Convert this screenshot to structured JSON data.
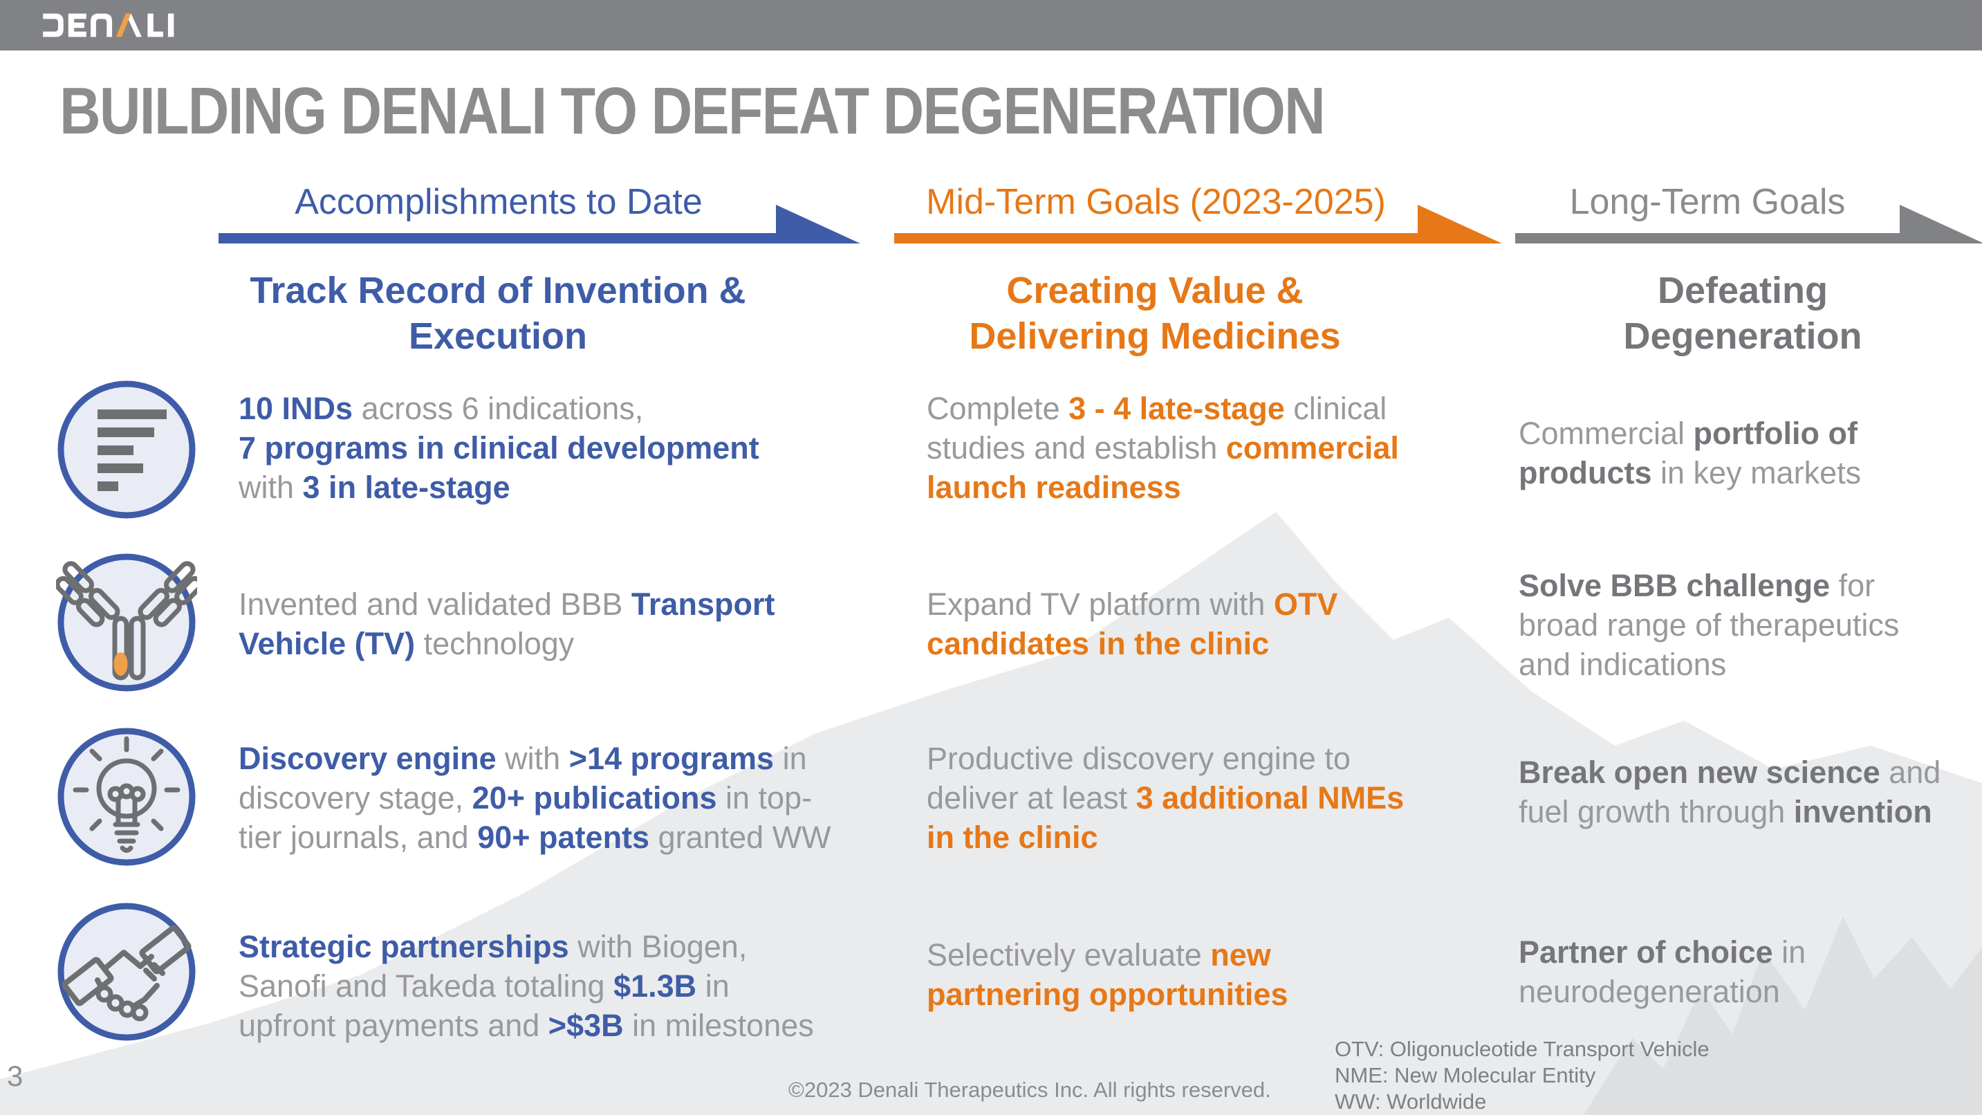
{
  "slide": {
    "logo_text": "DENALI",
    "title": "BUILDING DENALI TO DEFEAT DEGENERATION",
    "page_number": "3",
    "copyright": "©2023 Denali Therapeutics Inc. All rights reserved.",
    "abbreviations": [
      "OTV: Oligonucleotide Transport Vehicle",
      "NME: New Molecular Entity",
      "WW: Worldwide"
    ]
  },
  "colors": {
    "header-bar": "#808285",
    "title-gray": "#8A8C8E",
    "blue": "#3E5CA7",
    "orange": "#E67817",
    "logo-orange": "#F0A04A",
    "text-gray": "#97999C",
    "bold-gray": "#75767A",
    "mountain-light": "#EAEBEC",
    "mountain-dark": "#DEDFE1",
    "icon-circle-fill": "#E9ECF5",
    "icon-glyph-gray": "#6E6F71"
  },
  "icons": [
    {
      "name": "pipeline-bar-chart-icon"
    },
    {
      "name": "antibody-icon"
    },
    {
      "name": "lightbulb-idea-icon"
    },
    {
      "name": "handshake-icon"
    }
  ],
  "columns": [
    {
      "id": "accomplishments",
      "header": "Accomplishments to Date",
      "subtitle": [
        "Track Record of Invention &",
        "Execution"
      ],
      "rows": [
        [
          {
            "text": "10 INDs",
            "bold": true
          },
          {
            "text": " across 6 indications,",
            "bold": false
          },
          {
            "br": true
          },
          {
            "text": "7 programs in clinical development",
            "bold": true
          },
          {
            "br": true
          },
          {
            "text": "with ",
            "bold": false
          },
          {
            "text": "3 in late-stage",
            "bold": true
          }
        ],
        [
          {
            "text": "Invented and validated BBB ",
            "bold": false
          },
          {
            "text": "Transport",
            "bold": true
          },
          {
            "br": true
          },
          {
            "text": "Vehicle (TV)",
            "bold": true
          },
          {
            "text": " technology",
            "bold": false
          }
        ],
        [
          {
            "text": "Discovery engine",
            "bold": true
          },
          {
            "text": " with ",
            "bold": false
          },
          {
            "text": ">14 programs",
            "bold": true
          },
          {
            "text": " in",
            "bold": false
          },
          {
            "br": true
          },
          {
            "text": "discovery stage, ",
            "bold": false
          },
          {
            "text": "20+ publications",
            "bold": true
          },
          {
            "text": " in top-",
            "bold": false
          },
          {
            "br": true
          },
          {
            "text": "tier journals, and ",
            "bold": false
          },
          {
            "text": "90+ patents",
            "bold": true
          },
          {
            "text": " granted WW",
            "bold": false
          }
        ],
        [
          {
            "text": "Strategic partnerships",
            "bold": true
          },
          {
            "text": " with Biogen,",
            "bold": false
          },
          {
            "br": true
          },
          {
            "text": "Sanofi and Takeda totaling ",
            "bold": false
          },
          {
            "text": "$1.3B",
            "bold": true
          },
          {
            "text": " in",
            "bold": false
          },
          {
            "br": true
          },
          {
            "text": "upfront payments and ",
            "bold": false
          },
          {
            "text": ">$3B",
            "bold": true
          },
          {
            "text": " in milestones",
            "bold": false
          }
        ]
      ]
    },
    {
      "id": "mid-term-goals",
      "header": "Mid-Term Goals (2023-2025)",
      "subtitle": [
        "Creating Value &",
        "Delivering Medicines"
      ],
      "rows": [
        [
          {
            "text": "Complete ",
            "bold": false
          },
          {
            "text": "3 - 4 late-stage",
            "bold": true
          },
          {
            "text": " clinical",
            "bold": false
          },
          {
            "br": true
          },
          {
            "text": "studies and establish ",
            "bold": false
          },
          {
            "text": "commercial",
            "bold": true
          },
          {
            "br": true
          },
          {
            "text": "launch readiness",
            "bold": true
          }
        ],
        [
          {
            "text": "Expand TV platform with ",
            "bold": false
          },
          {
            "text": "OTV",
            "bold": true
          },
          {
            "br": true
          },
          {
            "text": "candidates in the clinic",
            "bold": true
          }
        ],
        [
          {
            "text": "Productive discovery engine to",
            "bold": false
          },
          {
            "br": true
          },
          {
            "text": "deliver at least ",
            "bold": false
          },
          {
            "text": "3 additional NMEs",
            "bold": true
          },
          {
            "br": true
          },
          {
            "text": "in the clinic",
            "bold": true
          }
        ],
        [
          {
            "text": "Selectively evaluate ",
            "bold": false
          },
          {
            "text": "new",
            "bold": true
          },
          {
            "br": true
          },
          {
            "text": "partnering opportunities",
            "bold": true
          }
        ]
      ]
    },
    {
      "id": "long-term-goals",
      "header": "Long-Term Goals",
      "subtitle": [
        "Defeating",
        "Degeneration"
      ],
      "rows": [
        [
          {
            "text": "Commercial ",
            "bold": false
          },
          {
            "text": "portfolio of",
            "bold": true
          },
          {
            "br": true
          },
          {
            "text": "products",
            "bold": true
          },
          {
            "text": " in key markets",
            "bold": false
          }
        ],
        [
          {
            "text": "Solve BBB challenge",
            "bold": true
          },
          {
            "text": " for",
            "bold": false
          },
          {
            "br": true
          },
          {
            "text": "broad range of therapeutics",
            "bold": false
          },
          {
            "br": true
          },
          {
            "text": "and indications",
            "bold": false
          }
        ],
        [
          {
            "text": "Break open new science",
            "bold": true
          },
          {
            "text": " and",
            "bold": false
          },
          {
            "br": true
          },
          {
            "text": "fuel growth through ",
            "bold": false
          },
          {
            "text": "invention",
            "bold": true
          }
        ],
        [
          {
            "text": "Partner of choice",
            "bold": true
          },
          {
            "text": " in",
            "bold": false
          },
          {
            "br": true
          },
          {
            "text": "neurodegeneration",
            "bold": false
          }
        ]
      ]
    }
  ]
}
